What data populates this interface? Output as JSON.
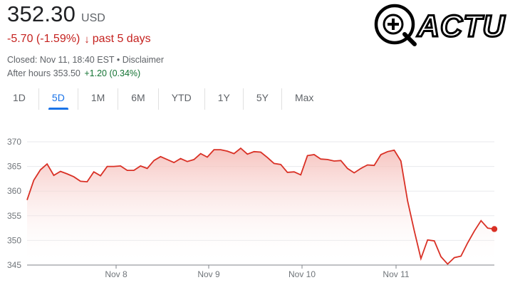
{
  "quote": {
    "price": "352.30",
    "currency": "USD",
    "change": "-5.70 (-1.59%)",
    "change_arrow": "↓",
    "period": "past 5 days",
    "closed": "Closed: Nov 11, 18:40 EST",
    "separator": "•",
    "disclaimer": "Disclaimer",
    "after_hours_label": "After hours",
    "after_hours_price": "353.50",
    "after_hours_change": "+1.20 (0.34%)"
  },
  "tabs": [
    {
      "label": "1D"
    },
    {
      "label": "5D"
    },
    {
      "label": "1M"
    },
    {
      "label": "6M"
    },
    {
      "label": "YTD"
    },
    {
      "label": "1Y"
    },
    {
      "label": "5Y"
    },
    {
      "label": "Max"
    }
  ],
  "active_tab": "5D",
  "logo": {
    "text": "ACTU"
  },
  "colors": {
    "negative": "#c5221f",
    "positive": "#137333",
    "active_tab": "#1a73e8",
    "line": "#d93025",
    "area_fill": "#f6c7c3",
    "grid": "#e8eaed"
  },
  "chart_data": {
    "type": "area",
    "x_tick_labels": [
      "Nov 8",
      "Nov 9",
      "Nov 10",
      "Nov 11"
    ],
    "y_tick_labels": [
      "370",
      "365",
      "360",
      "355",
      "350",
      "345"
    ],
    "ylim": [
      345,
      370
    ],
    "grid": true,
    "series": [
      {
        "values": [
          358.2,
          362.2,
          364.3,
          365.5,
          363.2,
          364.0,
          363.5,
          362.9,
          362.0,
          361.9,
          363.9,
          363.1,
          365.0,
          365.0,
          365.1,
          364.2,
          364.2,
          365.1,
          364.6,
          366.2,
          367.0,
          366.4,
          365.8,
          366.6,
          366.0,
          366.4,
          367.6,
          366.9,
          368.4,
          368.4,
          368.1,
          367.6,
          368.7,
          367.5,
          368.0,
          367.9,
          366.8,
          365.6,
          365.4,
          363.8,
          363.9,
          363.3,
          367.2,
          367.4,
          366.5,
          366.4,
          366.1,
          366.2,
          364.6,
          363.7,
          364.6,
          365.3,
          365.2,
          367.4,
          368.0,
          368.3,
          366.1,
          358.0,
          352.0,
          346.3,
          350.1,
          349.9,
          346.7,
          345.2,
          346.5,
          346.8,
          349.5,
          351.9,
          354.0,
          352.5,
          352.3
        ]
      }
    ],
    "last_value": 352.3
  }
}
